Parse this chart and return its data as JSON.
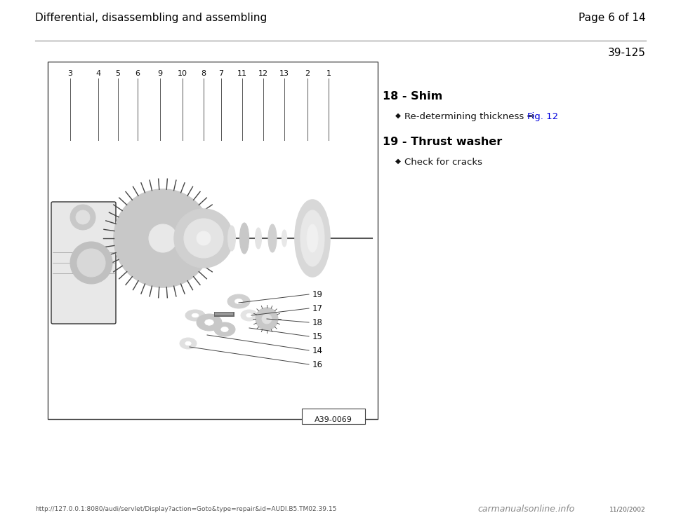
{
  "bg_color": "#ffffff",
  "header_title": "Differential, disassembling and assembling",
  "header_page": "Page 6 of 14",
  "section_number": "39-125",
  "item18_title": "18 - Shim",
  "item18_sub_before": "Re-determining thickness ⇒ ",
  "item18_sub_link": "Fig. 12",
  "item18_sub_link_color": "#0000dd",
  "item19_title": "19 - Thrust washer",
  "item19_sub": "Check for cracks",
  "diagram_label": "A39-0069",
  "footer_url": "http://127.0.0.1:8080/audi/servlet/Display?action=Goto&type=repair&id=AUDI.B5.TM02.39.15",
  "footer_date": "11/20/2002",
  "footer_watermark": "carmanualsonline.info",
  "part_numbers_top": [
    "3",
    "4",
    "5",
    "6",
    "9",
    "10",
    "8",
    "7",
    "11",
    "12",
    "13",
    "2",
    "1"
  ]
}
